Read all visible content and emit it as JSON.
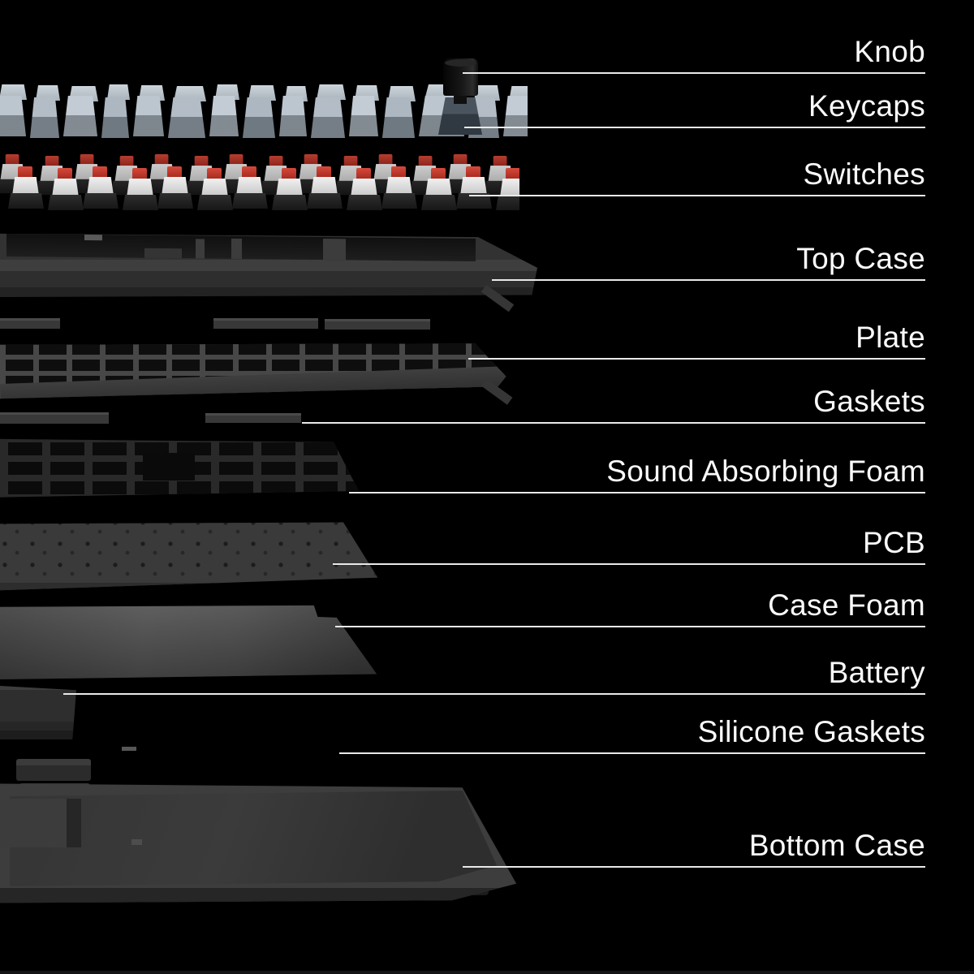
{
  "diagram": {
    "description": "Exploded view of a mechanical keyboard with labeled layers",
    "callouts": [
      {
        "label": "Knob"
      },
      {
        "label": "Keycaps"
      },
      {
        "label": "Switches"
      },
      {
        "label": "Top Case"
      },
      {
        "label": "Plate"
      },
      {
        "label": "Gaskets"
      },
      {
        "label": "Sound Absorbing Foam"
      },
      {
        "label": "PCB"
      },
      {
        "label": "Case Foam"
      },
      {
        "label": "Battery"
      },
      {
        "label": "Silicone Gaskets"
      },
      {
        "label": "Bottom Case"
      }
    ],
    "colors": {
      "background": "#000000",
      "label_text": "#fafafa",
      "leader_line": "#e9e9e9",
      "keycap": "#aab6c2",
      "switch_stem_red": "#c8392b",
      "switch_housing_white": "#e8e8e8",
      "case_gray": "#333333"
    }
  }
}
